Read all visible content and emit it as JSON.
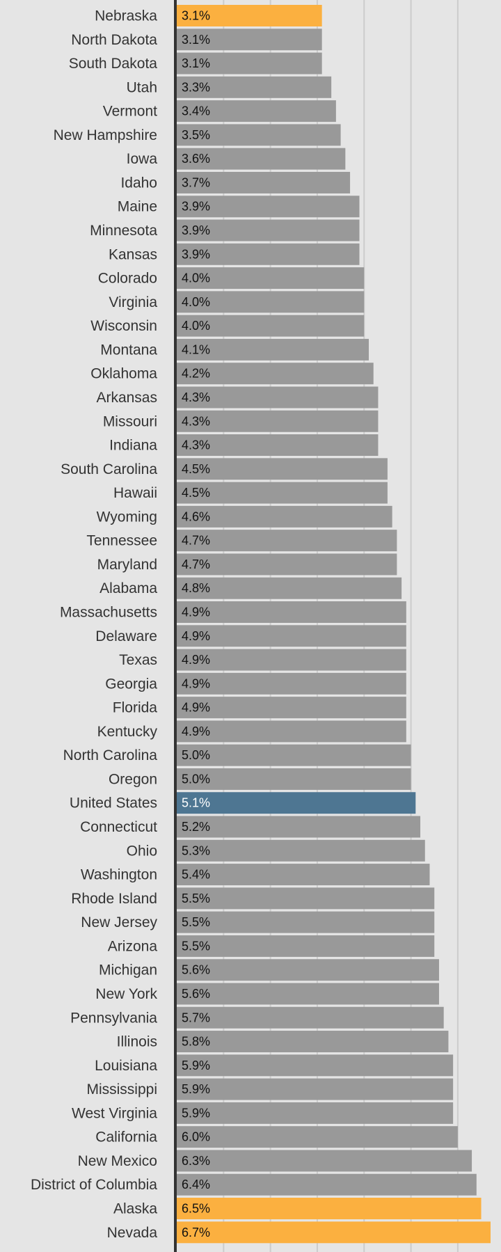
{
  "chart_data": {
    "type": "bar",
    "orientation": "horizontal",
    "value_format": "percent_one_decimal",
    "categories": [
      "Nebraska",
      "North Dakota",
      "South Dakota",
      "Utah",
      "Vermont",
      "New Hampshire",
      "Iowa",
      "Idaho",
      "Maine",
      "Minnesota",
      "Kansas",
      "Colorado",
      "Virginia",
      "Wisconsin",
      "Montana",
      "Oklahoma",
      "Arkansas",
      "Missouri",
      "Indiana",
      "South Carolina",
      "Hawaii",
      "Wyoming",
      "Tennessee",
      "Maryland",
      "Alabama",
      "Massachusetts",
      "Delaware",
      "Texas",
      "Georgia",
      "Florida",
      "Kentucky",
      "North Carolina",
      "Oregon",
      "United States",
      "Connecticut",
      "Ohio",
      "Washington",
      "Rhode Island",
      "New Jersey",
      "Arizona",
      "Michigan",
      "New York",
      "Pennsylvania",
      "Illinois",
      "Louisiana",
      "Mississippi",
      "West Virginia",
      "California",
      "New Mexico",
      "District of Columbia",
      "Alaska",
      "Nevada"
    ],
    "values": [
      3.1,
      3.1,
      3.1,
      3.3,
      3.4,
      3.5,
      3.6,
      3.7,
      3.9,
      3.9,
      3.9,
      4.0,
      4.0,
      4.0,
      4.1,
      4.2,
      4.3,
      4.3,
      4.3,
      4.5,
      4.5,
      4.6,
      4.7,
      4.7,
      4.8,
      4.9,
      4.9,
      4.9,
      4.9,
      4.9,
      4.9,
      5.0,
      5.0,
      5.1,
      5.2,
      5.3,
      5.4,
      5.5,
      5.5,
      5.5,
      5.6,
      5.6,
      5.7,
      5.8,
      5.9,
      5.9,
      5.9,
      6.0,
      6.3,
      6.4,
      6.5,
      6.7
    ],
    "value_labels": [
      "3.1%",
      "3.1%",
      "3.1%",
      "3.3%",
      "3.4%",
      "3.5%",
      "3.6%",
      "3.7%",
      "3.9%",
      "3.9%",
      "3.9%",
      "4.0%",
      "4.0%",
      "4.0%",
      "4.1%",
      "4.2%",
      "4.3%",
      "4.3%",
      "4.3%",
      "4.5%",
      "4.5%",
      "4.6%",
      "4.7%",
      "4.7%",
      "4.8%",
      "4.9%",
      "4.9%",
      "4.9%",
      "4.9%",
      "4.9%",
      "4.9%",
      "5.0%",
      "5.0%",
      "5.1%",
      "5.2%",
      "5.3%",
      "5.4%",
      "5.5%",
      "5.5%",
      "5.5%",
      "5.6%",
      "5.6%",
      "5.7%",
      "5.8%",
      "5.9%",
      "5.9%",
      "5.9%",
      "6.0%",
      "6.3%",
      "6.4%",
      "6.5%",
      "6.7%"
    ],
    "highlight": {
      "Nebraska": "#fbb040",
      "Alaska": "#fbb040",
      "Nevada": "#fbb040",
      "United States": "#4e7692"
    },
    "xlim": [
      0,
      6.7
    ],
    "grid": true,
    "grid_step": 1,
    "colors": {
      "background": "#e5e5e5",
      "bar": "#999999",
      "gridline": "#cccccc",
      "axis": "#333333",
      "category_text": "#333333",
      "value_text_default": "#111111",
      "value_text_on_dark": "#ffffff"
    }
  }
}
